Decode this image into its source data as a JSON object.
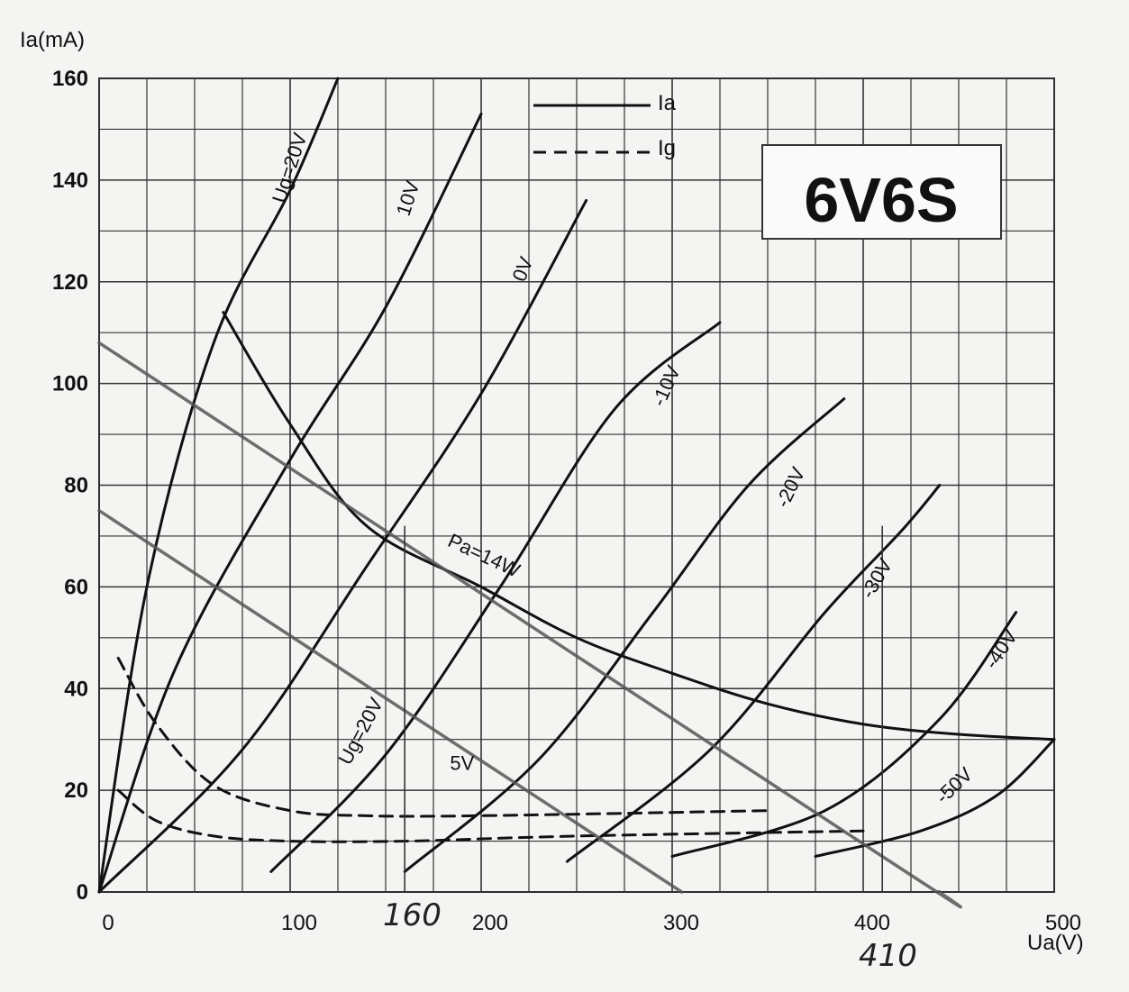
{
  "chart_data": {
    "type": "line",
    "title": "6V6S",
    "ylabel": "Ia(mA)",
    "xlabel": "Ua(V)",
    "xlim": [
      0,
      500
    ],
    "ylim": [
      0,
      160
    ],
    "x_ticks": [
      0,
      100,
      200,
      300,
      400,
      500
    ],
    "y_ticks": [
      0,
      20,
      40,
      60,
      80,
      100,
      120,
      140,
      160
    ],
    "grid": true,
    "legend": {
      "position": "top-center",
      "items": [
        {
          "label": "Ia",
          "style": "solid"
        },
        {
          "label": "Ig",
          "style": "dashed"
        }
      ]
    },
    "series": [
      {
        "name": "Ug=20V",
        "label_id": "ug20",
        "style": "solid",
        "points": [
          [
            0,
            0
          ],
          [
            25,
            60
          ],
          [
            60,
            108
          ],
          [
            100,
            138
          ],
          [
            125,
            160
          ]
        ]
      },
      {
        "name": "10V",
        "label_id": "ug10",
        "style": "solid",
        "points": [
          [
            0,
            0
          ],
          [
            40,
            44
          ],
          [
            100,
            85
          ],
          [
            150,
            115
          ],
          [
            200,
            153
          ]
        ]
      },
      {
        "name": "0V",
        "label_id": "ug0",
        "style": "solid",
        "points": [
          [
            0,
            0
          ],
          [
            75,
            28
          ],
          [
            140,
            64
          ],
          [
            200,
            98
          ],
          [
            255,
            136
          ]
        ]
      },
      {
        "name": "-10V",
        "label_id": "ugm10",
        "style": "solid",
        "points": [
          [
            90,
            4
          ],
          [
            150,
            27
          ],
          [
            210,
            60
          ],
          [
            270,
            95
          ],
          [
            325,
            112
          ]
        ]
      },
      {
        "name": "-20V",
        "label_id": "ugm20",
        "style": "solid",
        "points": [
          [
            160,
            4
          ],
          [
            230,
            26
          ],
          [
            290,
            55
          ],
          [
            340,
            80
          ],
          [
            390,
            97
          ]
        ]
      },
      {
        "name": "-30V",
        "label_id": "ugm30",
        "style": "solid",
        "points": [
          [
            245,
            6
          ],
          [
            320,
            28
          ],
          [
            380,
            55
          ],
          [
            420,
            71
          ],
          [
            440,
            80
          ]
        ]
      },
      {
        "name": "-40V",
        "label_id": "ugm40",
        "style": "solid",
        "points": [
          [
            300,
            7
          ],
          [
            380,
            16
          ],
          [
            440,
            34
          ],
          [
            480,
            55
          ]
        ]
      },
      {
        "name": "-50V",
        "label_id": "ugm50",
        "style": "solid",
        "points": [
          [
            375,
            7
          ],
          [
            430,
            12
          ],
          [
            470,
            19
          ],
          [
            500,
            30
          ]
        ]
      },
      {
        "name": "Pa=14W",
        "label_id": "pa14",
        "style": "solid",
        "points": [
          [
            65,
            114
          ],
          [
            100,
            92
          ],
          [
            140,
            72
          ],
          [
            200,
            60
          ],
          [
            250,
            50
          ],
          [
            300,
            43
          ],
          [
            350,
            37
          ],
          [
            400,
            33
          ],
          [
            450,
            31
          ],
          [
            500,
            30
          ]
        ]
      },
      {
        "name": "Ug=20V",
        "label_id": "ig20",
        "style": "dashed",
        "points": [
          [
            10,
            46
          ],
          [
            30,
            33
          ],
          [
            60,
            21
          ],
          [
            100,
            16
          ],
          [
            140,
            15
          ],
          [
            200,
            15
          ],
          [
            350,
            16
          ]
        ]
      },
      {
        "name": "5V",
        "label_id": "ig5",
        "style": "dashed",
        "points": [
          [
            10,
            20
          ],
          [
            30,
            14
          ],
          [
            60,
            11
          ],
          [
            100,
            10
          ],
          [
            160,
            10
          ],
          [
            250,
            11
          ],
          [
            400,
            12
          ]
        ]
      },
      {
        "name": "",
        "label_id": "load1",
        "style": "solid-gray",
        "points": [
          [
            0,
            108
          ],
          [
            410,
            7
          ],
          [
            440,
            0
          ]
        ]
      },
      {
        "name": "",
        "label_id": "load2",
        "style": "solid-gray",
        "points": [
          [
            0,
            75
          ],
          [
            305,
            0
          ]
        ]
      }
    ],
    "annotations": [
      {
        "text": "160",
        "x": 160,
        "kind": "handwritten-x"
      },
      {
        "text": "410",
        "x": 410,
        "kind": "handwritten-x"
      }
    ]
  }
}
